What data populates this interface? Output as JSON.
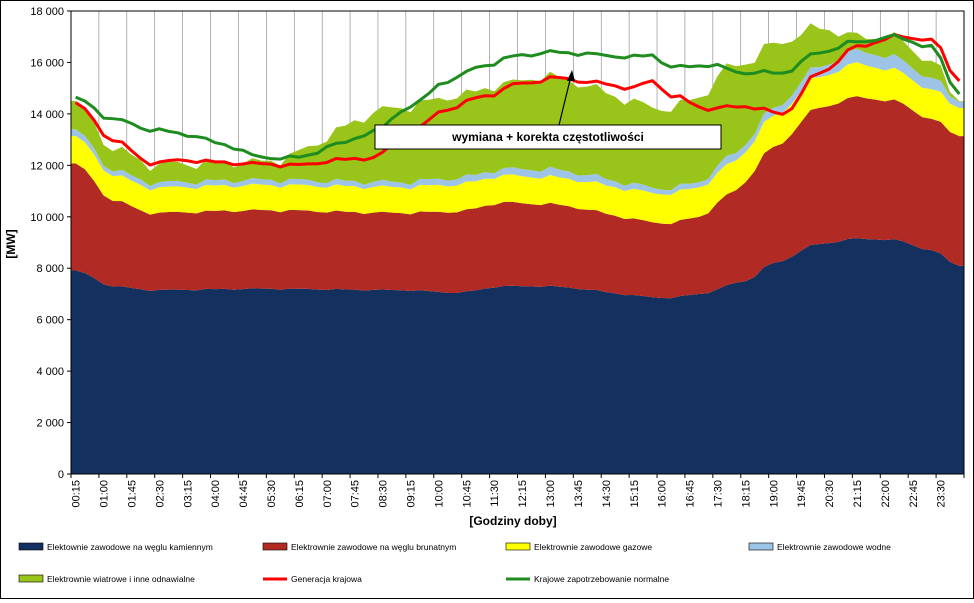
{
  "chart_data": {
    "type": "area",
    "ylabel": "[MW]",
    "xlabel": "[Godziny doby]",
    "ylim": [
      0,
      18000
    ],
    "y_ticks": [
      "0",
      "2 000",
      "4 000",
      "6 000",
      "8 000",
      "10 000",
      "12 000",
      "14 000",
      "16 000",
      "18 000"
    ],
    "x_tick_labels": [
      "00:15",
      "01:00",
      "01:45",
      "02:30",
      "03:15",
      "04:00",
      "04:45",
      "05:30",
      "06:15",
      "07:00",
      "07:45",
      "08:30",
      "09:15",
      "10:00",
      "10:45",
      "11:30",
      "12:15",
      "13:00",
      "13:45",
      "14:30",
      "15:15",
      "16:00",
      "16:45",
      "17:30",
      "18:15",
      "19:00",
      "19:45",
      "20:30",
      "21:15",
      "22:00",
      "22:45",
      "23:30"
    ],
    "grid": "vertical-lines",
    "legend_position": "bottom",
    "annotation": "wymiana + korekta częstotliwości",
    "stacked_series": [
      {
        "name": "Elektownie zawodowe na węglu kamiennym",
        "color": "#14305E",
        "key_points": [
          [
            0,
            7900
          ],
          [
            4,
            7300
          ],
          [
            8,
            7150
          ],
          [
            20,
            7200
          ],
          [
            35,
            7150
          ],
          [
            41,
            7050
          ],
          [
            46,
            7300
          ],
          [
            50,
            7300
          ],
          [
            64,
            6850
          ],
          [
            67,
            7000
          ],
          [
            72,
            7500
          ],
          [
            75,
            8200
          ],
          [
            80,
            8950
          ],
          [
            84,
            9150
          ],
          [
            88,
            9100
          ],
          [
            92,
            8700
          ],
          [
            95,
            8100
          ]
        ]
      },
      {
        "name": "Elektrownie zawodowe na węglu brunatnym",
        "color": "#B12A24",
        "key_points": [
          [
            0,
            4150
          ],
          [
            4,
            3350
          ],
          [
            8,
            3000
          ],
          [
            20,
            3050
          ],
          [
            35,
            3000
          ],
          [
            41,
            3150
          ],
          [
            46,
            3250
          ],
          [
            50,
            3200
          ],
          [
            64,
            2900
          ],
          [
            67,
            3000
          ],
          [
            70,
            3500
          ],
          [
            75,
            4500
          ],
          [
            80,
            5300
          ],
          [
            84,
            5500
          ],
          [
            88,
            5400
          ],
          [
            92,
            5100
          ],
          [
            95,
            5050
          ]
        ]
      },
      {
        "name": "Elektrownie zawodowe gazowe",
        "color": "#FFFF00",
        "key_points": [
          [
            0,
            1050
          ],
          [
            4,
            980
          ],
          [
            8,
            980
          ],
          [
            20,
            980
          ],
          [
            35,
            1000
          ],
          [
            41,
            1050
          ],
          [
            46,
            1050
          ],
          [
            50,
            1050
          ],
          [
            64,
            1150
          ],
          [
            67,
            1150
          ],
          [
            70,
            1150
          ],
          [
            75,
            1200
          ],
          [
            80,
            1200
          ],
          [
            84,
            1300
          ],
          [
            88,
            1200
          ],
          [
            92,
            1150
          ],
          [
            95,
            1100
          ]
        ]
      },
      {
        "name": "Elektrownie zawodowe wodne",
        "color": "#9DC3E6",
        "key_points": [
          [
            0,
            250
          ],
          [
            4,
            200
          ],
          [
            8,
            200
          ],
          [
            20,
            200
          ],
          [
            35,
            200
          ],
          [
            41,
            250
          ],
          [
            46,
            250
          ],
          [
            50,
            300
          ],
          [
            64,
            200
          ],
          [
            67,
            200
          ],
          [
            70,
            300
          ],
          [
            75,
            300
          ],
          [
            80,
            400
          ],
          [
            84,
            500
          ],
          [
            88,
            500
          ],
          [
            92,
            450
          ],
          [
            95,
            250
          ]
        ]
      },
      {
        "name": "Elektrownie wiatrowe i inne odnawialne",
        "color": "#99C419",
        "key_points": [
          [
            0,
            1050
          ],
          [
            4,
            850
          ],
          [
            8,
            700
          ],
          [
            20,
            700
          ],
          [
            35,
            2900
          ],
          [
            41,
            3200
          ],
          [
            46,
            3300
          ],
          [
            50,
            3600
          ],
          [
            64,
            3100
          ],
          [
            67,
            3300
          ],
          [
            70,
            3500
          ],
          [
            75,
            2500
          ],
          [
            80,
            1500
          ],
          [
            84,
            550
          ],
          [
            88,
            750
          ],
          [
            92,
            650
          ],
          [
            95,
            50
          ]
        ]
      }
    ],
    "line_series": [
      {
        "name": "Generacja krajowa",
        "color": "#FF0000",
        "key_points": [
          [
            0,
            14400
          ],
          [
            4,
            13000
          ],
          [
            8,
            12100
          ],
          [
            12,
            12200
          ],
          [
            16,
            12100
          ],
          [
            20,
            12050
          ],
          [
            24,
            12000
          ],
          [
            28,
            12200
          ],
          [
            32,
            12300
          ],
          [
            36,
            13300
          ],
          [
            40,
            14200
          ],
          [
            44,
            14700
          ],
          [
            48,
            15200
          ],
          [
            52,
            15400
          ],
          [
            56,
            15200
          ],
          [
            60,
            15000
          ],
          [
            62,
            15300
          ],
          [
            64,
            14700
          ],
          [
            68,
            14200
          ],
          [
            72,
            14300
          ],
          [
            76,
            14000
          ],
          [
            80,
            15600
          ],
          [
            84,
            16600
          ],
          [
            88,
            17000
          ],
          [
            92,
            16900
          ],
          [
            95,
            15300
          ]
        ]
      },
      {
        "name": "Krajowe zapotrzebowanie normalne",
        "color": "#1E8C1E",
        "key_points": [
          [
            0,
            14600
          ],
          [
            4,
            13800
          ],
          [
            8,
            13400
          ],
          [
            12,
            13200
          ],
          [
            16,
            12800
          ],
          [
            20,
            12300
          ],
          [
            24,
            12300
          ],
          [
            28,
            12800
          ],
          [
            32,
            13300
          ],
          [
            36,
            14300
          ],
          [
            40,
            15300
          ],
          [
            44,
            15900
          ],
          [
            48,
            16300
          ],
          [
            52,
            16400
          ],
          [
            56,
            16300
          ],
          [
            60,
            16200
          ],
          [
            62,
            16300
          ],
          [
            64,
            15800
          ],
          [
            68,
            15900
          ],
          [
            72,
            15600
          ],
          [
            76,
            15600
          ],
          [
            80,
            16400
          ],
          [
            84,
            16800
          ],
          [
            88,
            17000
          ],
          [
            92,
            16600
          ],
          [
            95,
            14800
          ]
        ]
      }
    ]
  }
}
